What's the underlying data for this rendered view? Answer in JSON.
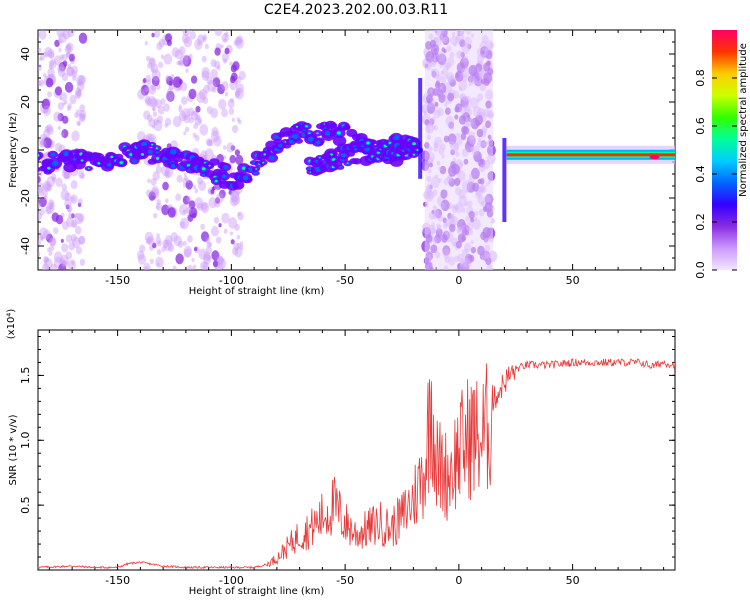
{
  "title": "C2E4.2023.202.00.03.R11",
  "colorbar": {
    "label": "Normalized spectral amplitude",
    "ticks": [
      0.0,
      0.2,
      0.4,
      0.6,
      0.8
    ],
    "range": [
      0,
      1
    ],
    "colors": [
      "#f2e6ff",
      "#cc99ff",
      "#8a2be2",
      "#3300ff",
      "#0066ff",
      "#00ccff",
      "#00ff99",
      "#33ff00",
      "#ccff00",
      "#ffcc00",
      "#ff3300",
      "#ff0066"
    ]
  },
  "chart_data": [
    {
      "type": "heatmap",
      "xlabel": "Height of straight line (km)",
      "ylabel": "Frequency (Hz)",
      "xlim": [
        -185,
        95
      ],
      "ylim": [
        -50,
        50
      ],
      "xticks": [
        -150,
        -100,
        -50,
        0,
        50
      ],
      "yticks": [
        -40,
        -20,
        0,
        20,
        40
      ],
      "noise_bands_km": [
        [
          -185,
          -165
        ],
        [
          -140,
          -95
        ],
        [
          -15,
          15
        ]
      ],
      "ridge": {
        "name": "",
        "x": [
          -185,
          -170,
          -160,
          -150,
          -140,
          -130,
          -120,
          -110,
          -100,
          -90,
          -80,
          -70,
          -60,
          -50,
          -40,
          -30,
          -20,
          -15,
          20,
          40,
          60,
          80,
          95
        ],
        "y": [
          -6,
          -5,
          -4,
          -2,
          0,
          -3,
          -5,
          -8,
          -12,
          -8,
          2,
          6,
          7,
          6,
          0,
          -2,
          2,
          1,
          -2,
          -2,
          -2,
          -2,
          -3
        ]
      },
      "ridge2": {
        "x": [
          -65,
          -55,
          -45,
          -35,
          -25,
          -18
        ],
        "y": [
          -6,
          -4,
          -1,
          0,
          2,
          1
        ]
      },
      "colors": {
        "high": "#ff0066",
        "mid": "#00ff99",
        "low": "#3300ff",
        "faint": "#cc99ff"
      }
    },
    {
      "type": "line",
      "xlabel": "Height of straight line (km)",
      "ylabel": "SNR (10 * v/v)",
      "scale_label": "(x10⁴)",
      "xlim": [
        -185,
        95
      ],
      "ylim": [
        0,
        1.85
      ],
      "xticks": [
        -150,
        -100,
        -50,
        0,
        50
      ],
      "yticks": [
        0.5,
        1.0,
        1.5
      ],
      "series": [
        {
          "name": "",
          "color": "#e83a3a",
          "x": [
            -185,
            -170,
            -160,
            -150,
            -145,
            -140,
            -130,
            -120,
            -110,
            -100,
            -90,
            -85,
            -80,
            -75,
            -70,
            -65,
            -60,
            -55,
            -50,
            -45,
            -40,
            -35,
            -30,
            -25,
            -20,
            -15,
            -12,
            -10,
            -5,
            0,
            5,
            10,
            15,
            20,
            25,
            30,
            40,
            50,
            60,
            70,
            80,
            85,
            90,
            95
          ],
          "y": [
            0.02,
            0.03,
            0.02,
            0.02,
            0.05,
            0.06,
            0.03,
            0.02,
            0.02,
            0.02,
            0.02,
            0.04,
            0.1,
            0.2,
            0.3,
            0.35,
            0.45,
            0.55,
            0.4,
            0.3,
            0.35,
            0.4,
            0.35,
            0.45,
            0.6,
            0.85,
            1.5,
            0.9,
            0.8,
            1.0,
            1.15,
            1.1,
            1.3,
            1.45,
            1.55,
            1.58,
            1.58,
            1.6,
            1.6,
            1.6,
            1.6,
            1.57,
            1.6,
            1.58
          ]
        }
      ]
    }
  ]
}
